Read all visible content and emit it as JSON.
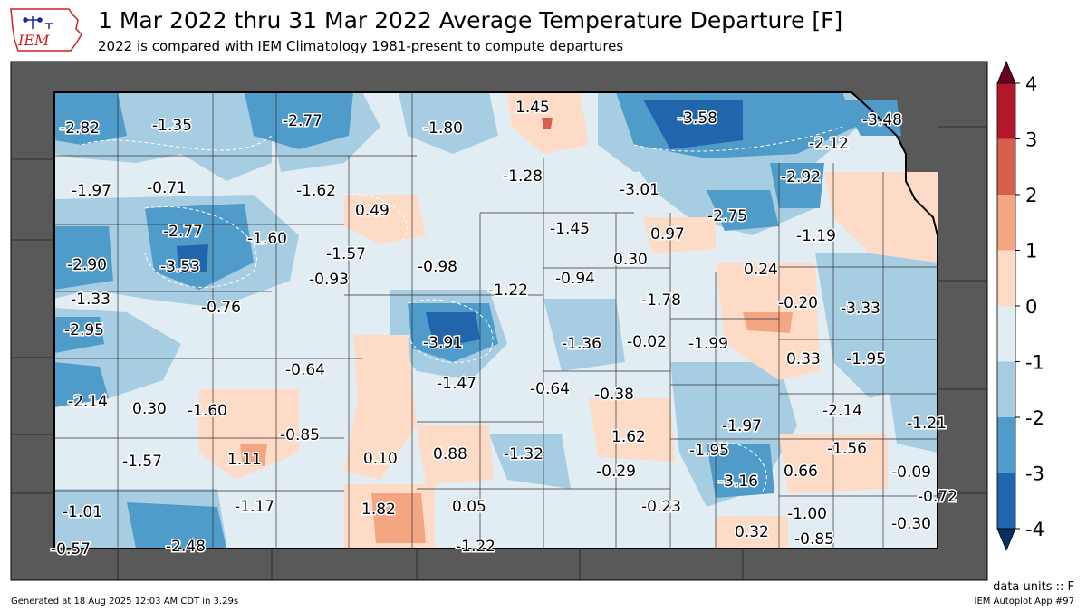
{
  "header": {
    "title": "1 Mar 2022 thru 31 Mar 2022 Average Temperature Departure [F]",
    "subtitle": "2022 is compared with IEM Climatology 1981-present to compute departures",
    "logo_text": "IEM"
  },
  "colorbar": {
    "ticks": [
      "4",
      "3",
      "2",
      "1",
      "0",
      "-1",
      "-2",
      "-3",
      "-4"
    ],
    "colors": [
      "#67001f",
      "#b2182b",
      "#d6604d",
      "#f4a582",
      "#fddbc7",
      "#e2ecf3",
      "#a7cde3",
      "#4f9bc9",
      "#2166ac",
      "#053061"
    ]
  },
  "footer": {
    "units": "data units :: F",
    "generated": "Generated at 18 Aug 2025 12:03 AM CDT in 3.29s",
    "app": "IEM Autoplot App #97"
  },
  "values": [
    "-2.82",
    "-1.35",
    "-2.77",
    "-1.80",
    "1.45",
    "-3.58",
    "-3.48",
    "-2.12",
    "-1.97",
    "-0.71",
    "-1.62",
    "0.49",
    "-1.28",
    "-3.01",
    "-2.92",
    "-2.75",
    "-2.77",
    "-1.60",
    "-1.45",
    "0.97",
    "-1.19",
    "-2.90",
    "-3.53",
    "-1.57",
    "-0.98",
    "0.30",
    "0.24",
    "-0.93",
    "-1.22",
    "-0.94",
    "-1.33",
    "-1.78",
    "-0.20",
    "-3.33",
    "-0.76",
    "-2.95",
    "-3.91",
    "-1.36",
    "-0.02",
    "-1.99",
    "0.33",
    "-1.95",
    "-0.64",
    "-1.47",
    "-0.64",
    "-0.38",
    "-2.14",
    "0.30",
    "-1.60",
    "-2.14",
    "-1.97",
    "-1.21",
    "-0.85",
    "1.62",
    "-1.56",
    "-1.95",
    "-1.57",
    "1.11",
    "0.10",
    "0.88",
    "-1.32",
    "-0.29",
    "0.66",
    "-0.09",
    "-3.16",
    "-0.72",
    "-1.01",
    "-1.17",
    "1.82",
    "0.05",
    "-0.23",
    "-1.00",
    "-0.30",
    "0.32",
    "-0.57",
    "-2.48",
    "-1.22",
    "-0.85"
  ]
}
